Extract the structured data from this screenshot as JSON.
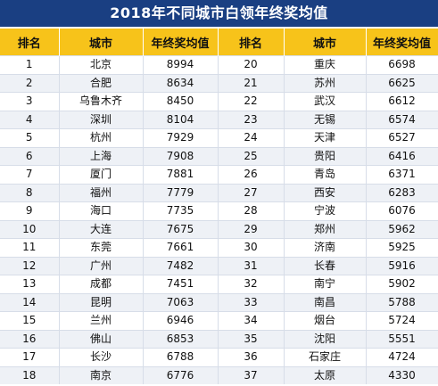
{
  "title": "2018年不同城市白领年终奖均值",
  "headers": {
    "rank": "排名",
    "city": "城市",
    "value": "年终奖均值",
    "rank2": "排名",
    "city2": "城市",
    "value2": "年终奖均值"
  },
  "rows": [
    {
      "rank": "1",
      "city": "北京",
      "value": "8994",
      "rank2": "20",
      "city2": "重庆",
      "value2": "6698"
    },
    {
      "rank": "2",
      "city": "合肥",
      "value": "8634",
      "rank2": "21",
      "city2": "苏州",
      "value2": "6625"
    },
    {
      "rank": "3",
      "city": "乌鲁木齐",
      "value": "8450",
      "rank2": "22",
      "city2": "武汉",
      "value2": "6612"
    },
    {
      "rank": "4",
      "city": "深圳",
      "value": "8104",
      "rank2": "23",
      "city2": "无锡",
      "value2": "6574"
    },
    {
      "rank": "5",
      "city": "杭州",
      "value": "7929",
      "rank2": "24",
      "city2": "天津",
      "value2": "6527"
    },
    {
      "rank": "6",
      "city": "上海",
      "value": "7908",
      "rank2": "25",
      "city2": "贵阳",
      "value2": "6416"
    },
    {
      "rank": "7",
      "city": "厦门",
      "value": "7881",
      "rank2": "26",
      "city2": "青岛",
      "value2": "6371"
    },
    {
      "rank": "8",
      "city": "福州",
      "value": "7779",
      "rank2": "27",
      "city2": "西安",
      "value2": "6283"
    },
    {
      "rank": "9",
      "city": "海口",
      "value": "7735",
      "rank2": "28",
      "city2": "宁波",
      "value2": "6076"
    },
    {
      "rank": "10",
      "city": "大连",
      "value": "7675",
      "rank2": "29",
      "city2": "郑州",
      "value2": "5962"
    },
    {
      "rank": "11",
      "city": "东莞",
      "value": "7661",
      "rank2": "30",
      "city2": "济南",
      "value2": "5925"
    },
    {
      "rank": "12",
      "city": "广州",
      "value": "7482",
      "rank2": "31",
      "city2": "长春",
      "value2": "5916"
    },
    {
      "rank": "13",
      "city": "成都",
      "value": "7451",
      "rank2": "32",
      "city2": "南宁",
      "value2": "5902"
    },
    {
      "rank": "14",
      "city": "昆明",
      "value": "7063",
      "rank2": "33",
      "city2": "南昌",
      "value2": "5788"
    },
    {
      "rank": "15",
      "city": "兰州",
      "value": "6946",
      "rank2": "34",
      "city2": "烟台",
      "value2": "5724"
    },
    {
      "rank": "16",
      "city": "佛山",
      "value": "6853",
      "rank2": "35",
      "city2": "沈阳",
      "value2": "5551"
    },
    {
      "rank": "17",
      "city": "长沙",
      "value": "6788",
      "rank2": "36",
      "city2": "石家庄",
      "value2": "4724"
    },
    {
      "rank": "18",
      "city": "南京",
      "value": "6776",
      "rank2": "37",
      "city2": "太原",
      "value2": "4330"
    }
  ]
}
